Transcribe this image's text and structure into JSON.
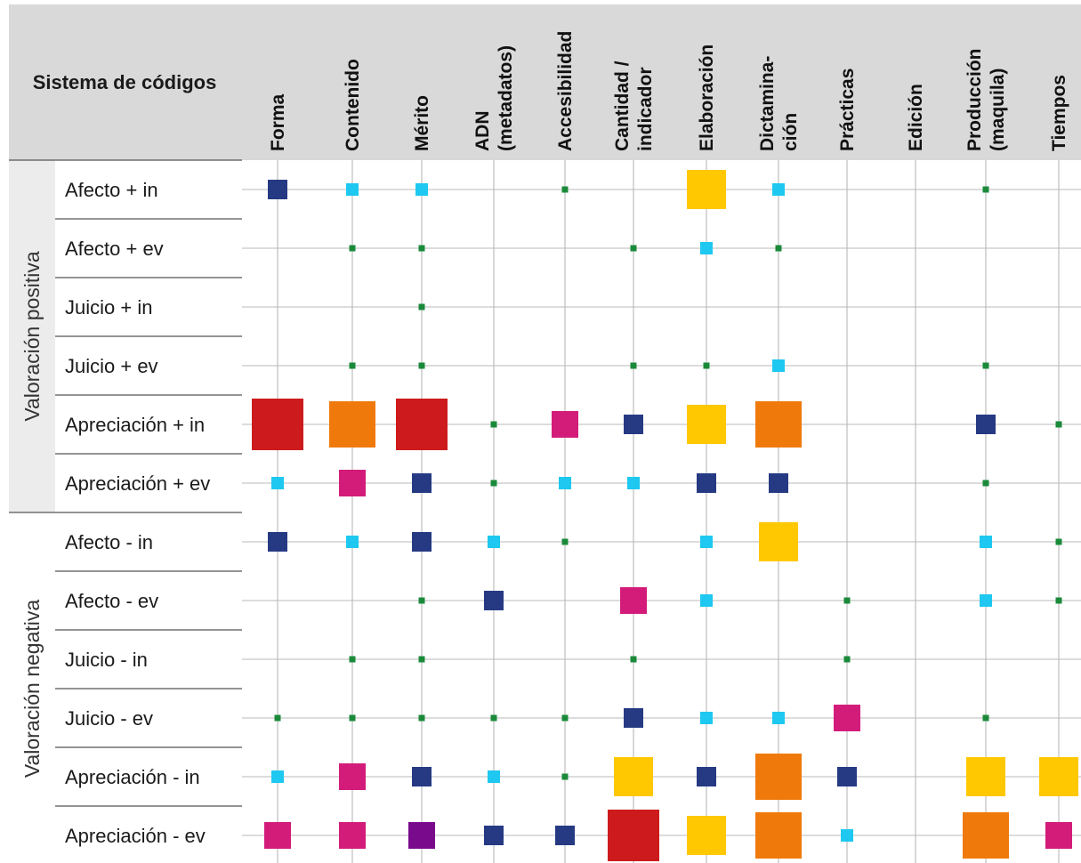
{
  "chart_data": {
    "type": "heatmap",
    "title": "",
    "corner_label": "Sistema de códigos",
    "size_legend": "",
    "columns": [
      [
        "Forma"
      ],
      [
        "Contenido"
      ],
      [
        "Mérito"
      ],
      [
        "ADN",
        "(metadatos)"
      ],
      [
        "Accesibilidad"
      ],
      [
        "Cantidad /",
        "indicador"
      ],
      [
        "Elaboración"
      ],
      [
        "Dictamina-",
        "ción"
      ],
      [
        "Prácticas"
      ],
      [
        "Edición"
      ],
      [
        "Producción",
        "(maquila)"
      ],
      [
        "Tiempos"
      ]
    ],
    "groups": [
      {
        "label": "Valoración positiva",
        "rows": 6
      },
      {
        "label": "Valoración negativa",
        "rows": 6
      }
    ],
    "rows": [
      "Afecto + in",
      "Afecto + ev",
      "Juicio + in",
      "Juicio + ev",
      "Apreciación + in",
      "Apreciación + ev",
      "Afecto - in",
      "Afecto - ev",
      "Juicio - in",
      "Juicio - ev",
      "Apreciación - in",
      "Apreciación - ev"
    ],
    "level_colors": {
      "1": "#1a8a3a",
      "2": "#1ec8f0",
      "3": "#263a84",
      "4": "#d31c7a",
      "5": "#7a0a8c",
      "6": "#ffc800",
      "7": "#ef7a0b",
      "8": "#cd1b1d"
    },
    "values": [
      [
        3,
        2,
        2,
        0,
        1,
        0,
        6,
        2,
        0,
        0,
        1,
        0
      ],
      [
        0,
        1,
        1,
        0,
        0,
        1,
        2,
        1,
        0,
        0,
        0,
        0
      ],
      [
        0,
        0,
        1,
        0,
        0,
        0,
        0,
        0,
        0,
        0,
        0,
        0
      ],
      [
        0,
        1,
        1,
        0,
        0,
        1,
        1,
        2,
        0,
        0,
        1,
        0
      ],
      [
        8,
        7,
        8,
        1,
        4,
        3,
        6,
        7,
        0,
        0,
        3,
        1
      ],
      [
        2,
        4,
        3,
        1,
        2,
        2,
        3,
        3,
        0,
        0,
        1,
        0
      ],
      [
        3,
        2,
        3,
        2,
        1,
        0,
        2,
        6,
        0,
        0,
        2,
        1
      ],
      [
        0,
        0,
        1,
        3,
        0,
        4,
        2,
        0,
        1,
        0,
        2,
        1
      ],
      [
        0,
        1,
        1,
        0,
        0,
        1,
        0,
        0,
        1,
        0,
        0,
        0
      ],
      [
        1,
        1,
        1,
        1,
        1,
        3,
        2,
        2,
        4,
        0,
        1,
        0
      ],
      [
        2,
        4,
        3,
        2,
        1,
        6,
        3,
        7,
        3,
        0,
        6,
        6
      ],
      [
        4,
        4,
        5,
        3,
        3,
        8,
        6,
        7,
        2,
        0,
        7,
        4
      ]
    ]
  }
}
